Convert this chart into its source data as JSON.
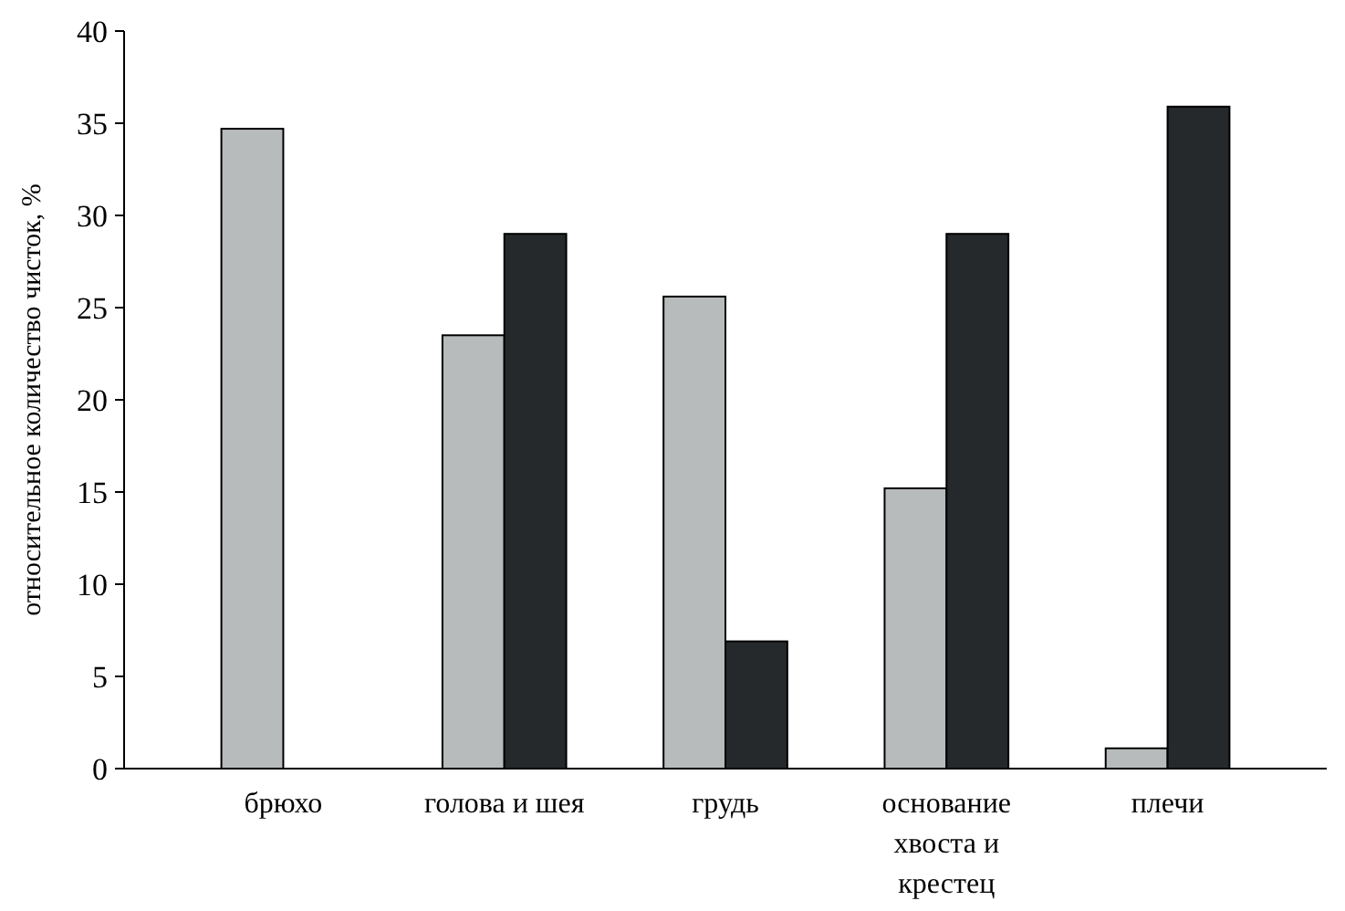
{
  "chart_data": {
    "type": "bar",
    "ylabel": "относительное количество чисток, %",
    "categories": [
      "брюхо",
      "голова и шея",
      "грудь",
      "основание хвоста и крестец",
      "плечи"
    ],
    "series": [
      {
        "color": "#b8bbbb",
        "values": [
          34.7,
          23.5,
          25.6,
          15.2,
          1.1
        ]
      },
      {
        "color": "#26292b",
        "values": [
          null,
          29.0,
          6.9,
          29.0,
          35.9
        ]
      }
    ],
    "ylim": [
      0,
      40
    ],
    "yticks": [
      0,
      5,
      10,
      15,
      20,
      25,
      30,
      35,
      40
    ],
    "grid": false
  }
}
